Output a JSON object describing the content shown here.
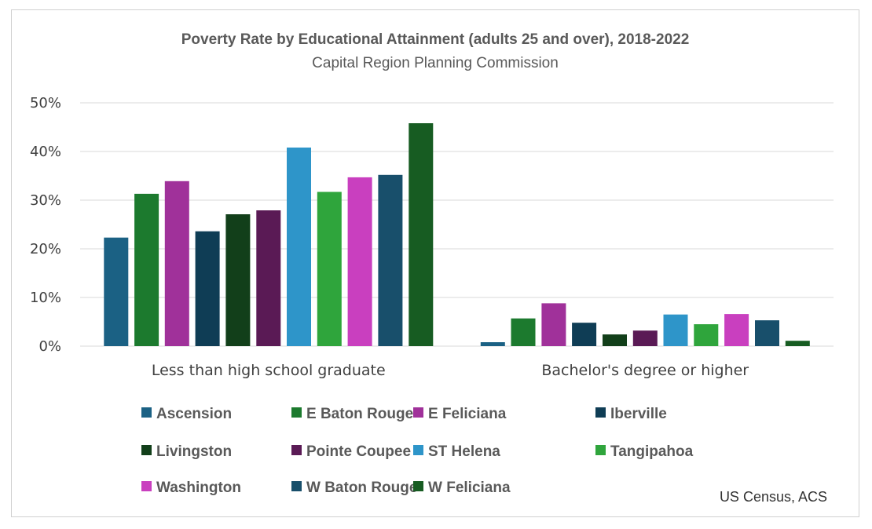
{
  "chart_data": {
    "type": "bar",
    "title": "Poverty Rate by Educational Attainment (adults 25 and over), 2018-2022",
    "subtitle": "Capital Region Planning Commission",
    "source": "US Census, ACS",
    "categories": [
      "Less than high school graduate",
      "Bachelor's degree or higher"
    ],
    "ylim": [
      0,
      50
    ],
    "yticks": [
      "0%",
      "10%",
      "20%",
      "30%",
      "40%",
      "50%"
    ],
    "grid": true,
    "legend_position": "bottom",
    "series": [
      {
        "name": "Ascension",
        "color": "#1b6184",
        "values": [
          22.3,
          0.8
        ]
      },
      {
        "name": "E Baton Rouge",
        "color": "#1c7a2e",
        "values": [
          31.3,
          5.7
        ]
      },
      {
        "name": "E Feliciana",
        "color": "#a0319a",
        "values": [
          33.9,
          8.8
        ]
      },
      {
        "name": "Iberville",
        "color": "#0f3d55",
        "values": [
          23.6,
          4.8
        ]
      },
      {
        "name": "Livingston",
        "color": "#123f1a",
        "values": [
          27.1,
          2.4
        ]
      },
      {
        "name": "Pointe Coupee",
        "color": "#5a1a55",
        "values": [
          27.9,
          3.2
        ]
      },
      {
        "name": "ST Helena",
        "color": "#2e95c9",
        "values": [
          40.8,
          6.5
        ]
      },
      {
        "name": "Tangipahoa",
        "color": "#2fa53c",
        "values": [
          31.7,
          4.5
        ]
      },
      {
        "name": "Washington",
        "color": "#c93fbf",
        "values": [
          34.7,
          6.6
        ]
      },
      {
        "name": "W Baton Rouge",
        "color": "#184f6b",
        "values": [
          35.2,
          5.3
        ]
      },
      {
        "name": "W Feliciana",
        "color": "#175c22",
        "values": [
          45.8,
          1.1
        ]
      }
    ]
  }
}
